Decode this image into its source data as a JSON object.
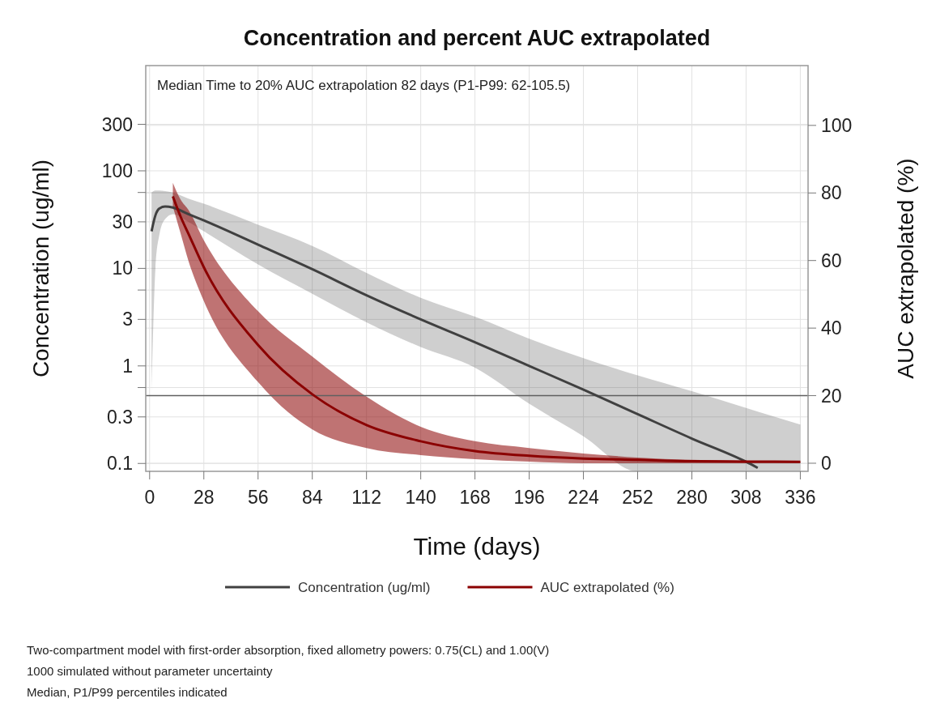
{
  "chart_data": {
    "type": "line",
    "title": "Concentration and percent AUC extrapolated",
    "xlabel": "Time (days)",
    "ylabel": "Concentration (ug/ml)",
    "y2label": "AUC extrapolated (%)",
    "xlim": [
      -2,
      340
    ],
    "xticks": [
      0,
      28,
      56,
      84,
      112,
      140,
      168,
      196,
      224,
      252,
      280,
      308,
      336
    ],
    "ylim": [
      0.083,
      1200
    ],
    "yticks": [
      0.1,
      0.3,
      {
        "value": 0.6,
        "label": null
      },
      1,
      3,
      {
        "value": 6,
        "label": null
      },
      10,
      30,
      {
        "value": 60,
        "label": null
      },
      100,
      300
    ],
    "y2lim": [
      -2.4,
      117.7
    ],
    "y2ticks": [
      0,
      20,
      40,
      60,
      80,
      100
    ],
    "log": "y",
    "grid": true,
    "legend": "bottom",
    "line_style": "solid",
    "ref_lines": [
      {
        "axis": "y2",
        "value": 20,
        "color": "#606060"
      }
    ],
    "series": [
      {
        "name": "Concentration (ug/ml)",
        "color": "#404040",
        "x": [
          1,
          3,
          5,
          8,
          12,
          20,
          28,
          56,
          84,
          112,
          140,
          168,
          196,
          224,
          252,
          280,
          308,
          314,
          336
        ],
        "values": [
          24,
          35,
          41,
          43,
          42,
          36,
          31,
          17.5,
          9.8,
          5.3,
          3.0,
          1.75,
          1.0,
          0.57,
          0.32,
          0.18,
          0.104,
          0.09,
          null
        ],
        "lower": [
          0.5,
          10,
          22,
          32,
          36,
          30,
          24,
          11,
          5.5,
          2.8,
          1.56,
          0.96,
          0.41,
          0.19,
          0.083,
          0.083,
          0.083,
          0.083,
          0.083
        ],
        "upper": [
          60,
          63,
          63,
          62,
          60,
          52,
          46,
          28,
          17,
          9,
          5,
          3.2,
          1.9,
          1.2,
          0.8,
          0.55,
          0.37,
          0.34,
          0.25
        ]
      },
      {
        "name": "AUC extrapolated (%)",
        "color": "#8b0000",
        "axis": "y2",
        "x": [
          12,
          16,
          20,
          28,
          56,
          84,
          112,
          140,
          168,
          196,
          224,
          252,
          280,
          308,
          336
        ],
        "values": [
          79,
          73,
          68,
          58,
          35,
          20.4,
          11.3,
          6.5,
          3.6,
          2.2,
          1.4,
          1,
          0.6,
          0.5,
          0.4
        ],
        "lower": [
          76,
          68,
          60,
          48,
          24,
          10,
          4.5,
          2.4,
          1.2,
          0.5,
          0,
          0,
          0,
          0,
          0
        ],
        "upper": [
          83,
          78,
          75,
          66,
          45,
          31.6,
          19.7,
          10.8,
          6.5,
          4.5,
          2.9,
          1.7,
          1,
          0.7,
          0.5
        ]
      }
    ],
    "annotations": [
      "Median Time to 20% AUC extrapolation 82 days (P1-P99: 62-105.5)",
      "Two-compartment model with first-order absorption, fixed allometry powers: 0.75(CL) and 1.00(V)",
      "1000 simulated without parameter uncertainty",
      "Median, P1/P99 percentiles indicated"
    ]
  }
}
